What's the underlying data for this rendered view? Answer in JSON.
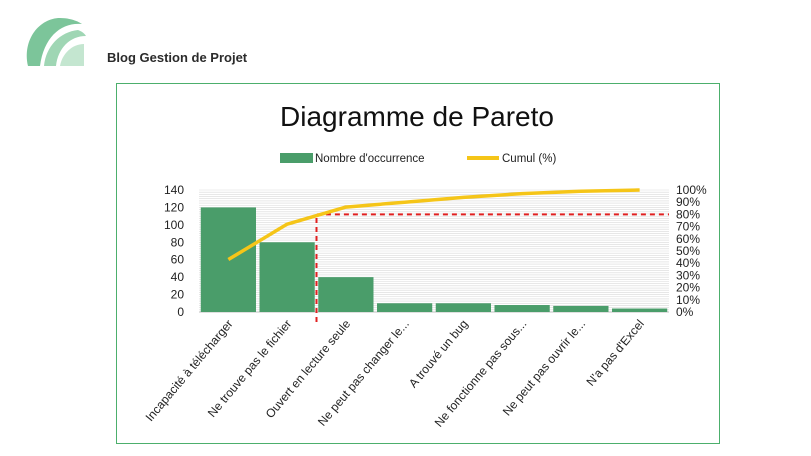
{
  "brand": {
    "name": "Blog Gestion de Projet"
  },
  "chart_data": {
    "type": "bar",
    "title": "Diagramme de Pareto",
    "categories": [
      "Incapacité à télécharger",
      "Ne trouve pas le fichier",
      "Ouvert en lecture seule",
      "Ne peut pas changer le...",
      "A trouvé un bug",
      "Ne fonctionne pas sous...",
      "Ne peut pas ouvrir le...",
      "N'a pas d'Excel"
    ],
    "series": [
      {
        "name": "Nombre d'occurrence",
        "type": "bar",
        "axis": "left",
        "values": [
          120,
          80,
          40,
          10,
          10,
          8,
          7,
          4
        ],
        "color": "#4a9d6a"
      },
      {
        "name": "Cumul (%)",
        "type": "line",
        "axis": "right",
        "values": [
          43,
          72,
          86,
          90,
          94,
          97,
          99,
          100
        ],
        "color": "#f5c518"
      }
    ],
    "threshold": {
      "value": 80,
      "axis": "right",
      "color": "#e02020",
      "from_category_index": 2,
      "style": "dashed"
    },
    "y_left": {
      "ylim": [
        0,
        140
      ],
      "ticks": [
        "0",
        "20",
        "40",
        "60",
        "80",
        "100",
        "120",
        "140"
      ]
    },
    "y_right": {
      "ylim": [
        0,
        100
      ],
      "ticks": [
        "0%",
        "10%",
        "20%",
        "30%",
        "40%",
        "50%",
        "60%",
        "70%",
        "80%",
        "90%",
        "100%"
      ]
    },
    "grid": true,
    "legend_position": "top"
  }
}
